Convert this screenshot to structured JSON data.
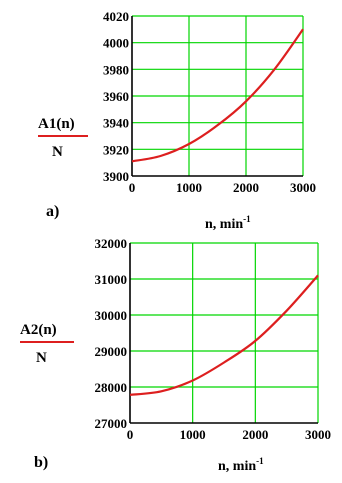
{
  "colors": {
    "grid": "#00d600",
    "curve": "#dd1f1f",
    "axis": "#000000",
    "denominator_line": "#dd1f1f"
  },
  "chart_data": [
    {
      "type": "line",
      "panel_label": "a)",
      "ylabel_numerator": "A1(n)",
      "ylabel_denominator": "N",
      "xlabel": "n, min",
      "xlabel_superscript": "-1",
      "xlim": [
        0,
        3000
      ],
      "ylim": [
        3900,
        4020
      ],
      "xticks": [
        0,
        1000,
        2000,
        3000
      ],
      "yticks": [
        3900,
        3920,
        3940,
        3960,
        3980,
        4000,
        4020
      ],
      "grid": true,
      "series": [
        {
          "x": [
            0,
            500,
            1000,
            1500,
            2000,
            2500,
            3000
          ],
          "y": [
            3911,
            3915,
            3924,
            3938,
            3956,
            3980,
            4010
          ]
        }
      ]
    },
    {
      "type": "line",
      "panel_label": "b)",
      "ylabel_numerator": "A2(n)",
      "ylabel_denominator": "N",
      "xlabel": "n, min",
      "xlabel_superscript": "-1",
      "xlim": [
        0,
        3000
      ],
      "ylim": [
        27000,
        32000
      ],
      "xticks": [
        0,
        1000,
        2000,
        3000
      ],
      "yticks": [
        27000,
        28000,
        29000,
        30000,
        31000,
        32000
      ],
      "grid": true,
      "series": [
        {
          "x": [
            0,
            500,
            1000,
            1500,
            2000,
            2500,
            3000
          ],
          "y": [
            27780,
            27880,
            28180,
            28680,
            29280,
            30120,
            31100
          ]
        }
      ]
    }
  ]
}
